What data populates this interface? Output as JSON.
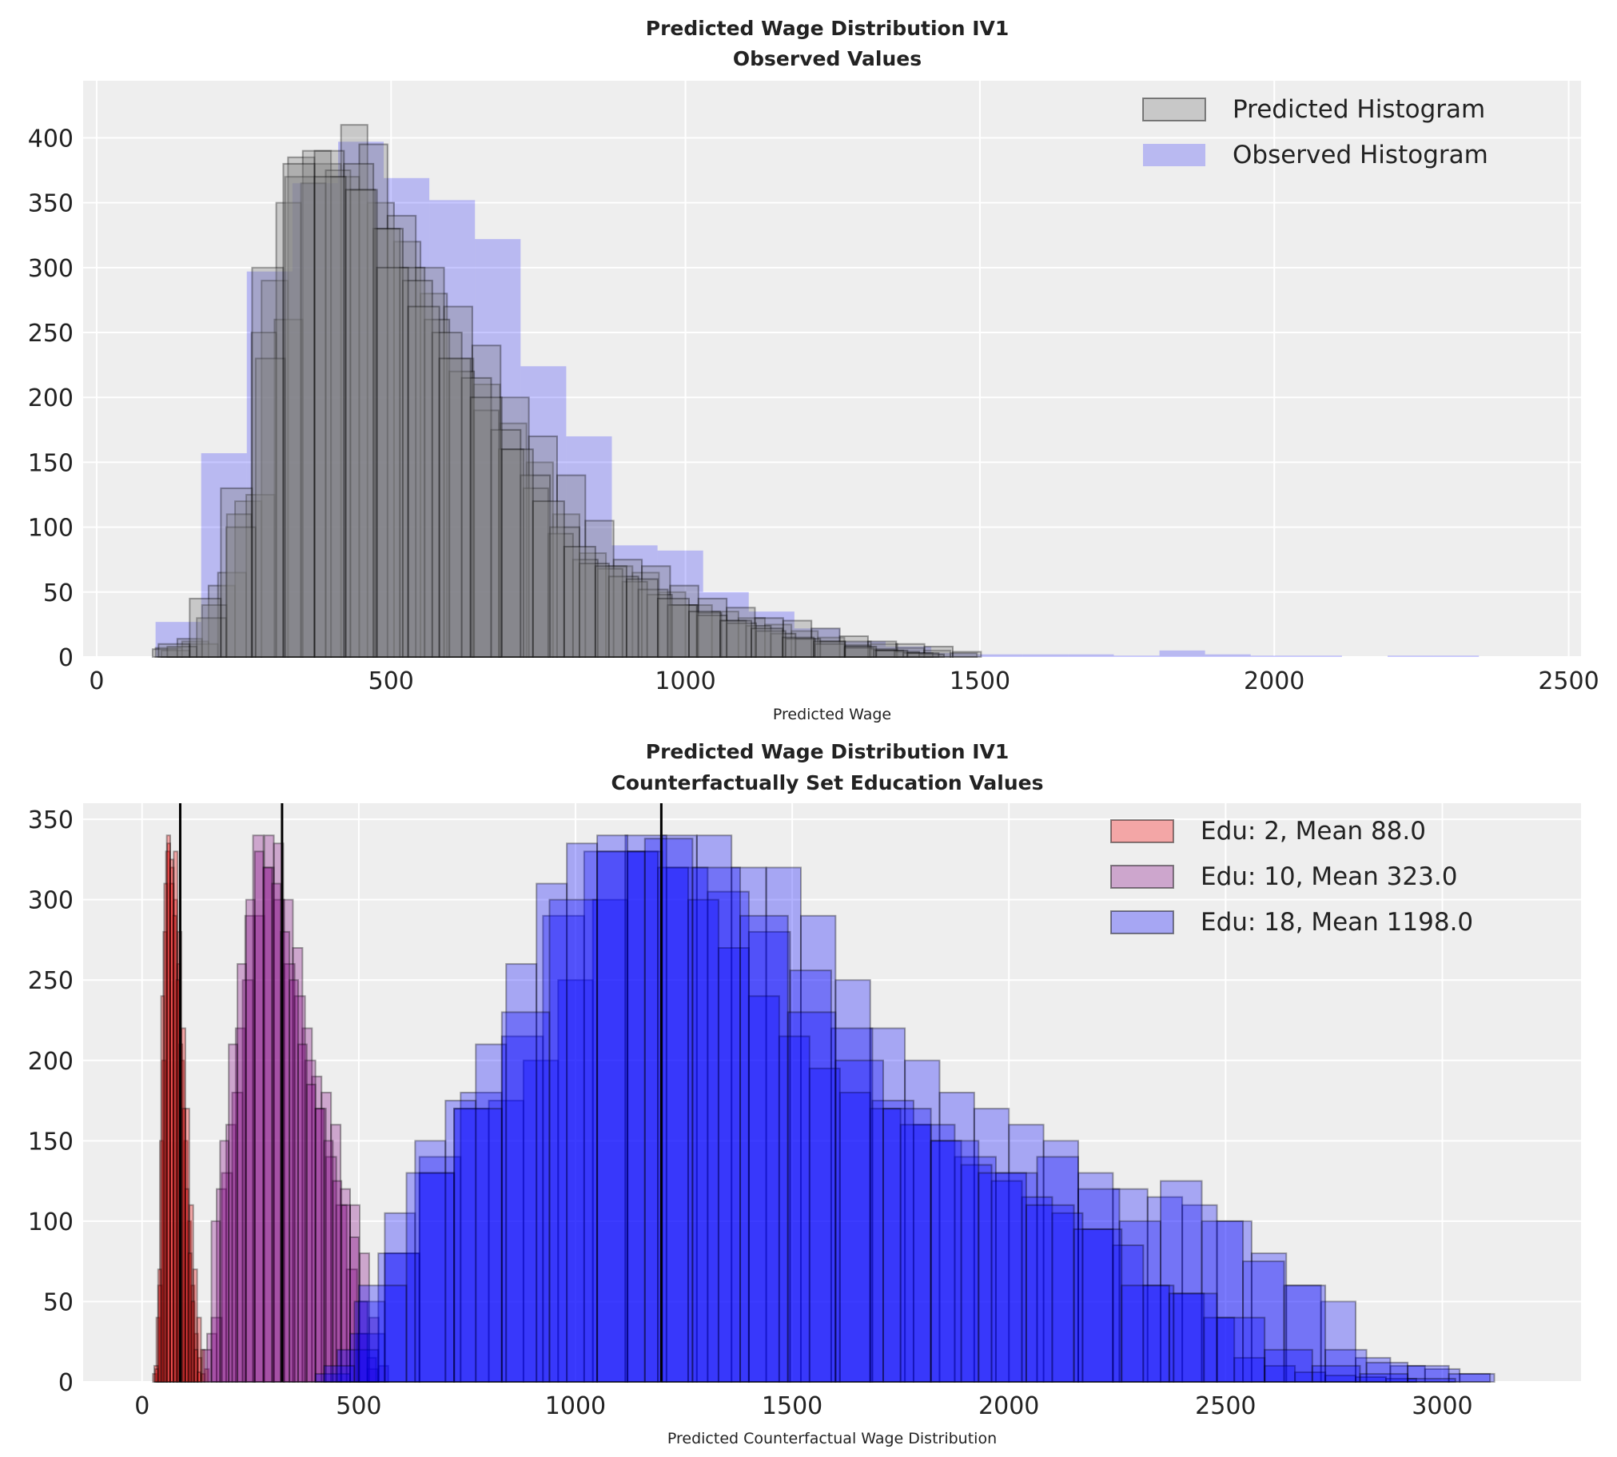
{
  "chart_data": [
    {
      "type": "histogram",
      "title": "Predicted Wage Distribution IV1",
      "subtitle": "Observed Values",
      "xlabel": "Predicted Wage",
      "ylabel": "",
      "xlim": [
        -23,
        2521
      ],
      "ylim": [
        0,
        444
      ],
      "xticks": [
        0,
        500,
        1000,
        1500,
        2000,
        2500
      ],
      "yticks": [
        0,
        50,
        100,
        150,
        200,
        250,
        300,
        350,
        400
      ],
      "grid": true,
      "legend_position": "top-right",
      "legend": [
        {
          "label": "Predicted Histogram",
          "color": "#808080",
          "alpha": 0.35,
          "edge": true
        },
        {
          "label": "Observed Histogram",
          "color": "#0000ff",
          "alpha": 0.22,
          "edge": false
        }
      ],
      "series": [
        {
          "group": "Observed Histogram",
          "color": "#0000ff",
          "alpha": 0.22,
          "edge": false,
          "start": 100,
          "width": 77.5,
          "counts": [
            27,
            157,
            297,
            365,
            397,
            369,
            352,
            322,
            224,
            170,
            86,
            82,
            50,
            35,
            22,
            12,
            8,
            3,
            2,
            2,
            2,
            1,
            5,
            2,
            1,
            1,
            0,
            1,
            1
          ]
        },
        {
          "group": "Predicted Histogram",
          "color": "#808080",
          "alpha": 0.35,
          "edge": true,
          "start": 100,
          "width": 45,
          "counts": [
            7,
            12,
            55,
            120,
            290,
            385,
            380,
            410,
            350,
            320,
            280,
            230,
            210,
            180,
            150,
            110,
            80,
            70,
            65,
            50,
            40,
            35,
            30,
            25,
            20,
            15,
            12,
            10,
            7,
            5,
            3
          ]
        },
        {
          "group": "Predicted Histogram",
          "color": "#808080",
          "alpha": 0.35,
          "edge": true,
          "start": 110,
          "width": 48,
          "counts": [
            5,
            10,
            65,
            125,
            260,
            390,
            370,
            395,
            340,
            300,
            270,
            240,
            200,
            170,
            140,
            105,
            75,
            70,
            55,
            45,
            38,
            30,
            28,
            22,
            16,
            12,
            10,
            8,
            4
          ]
        },
        {
          "group": "Predicted Histogram",
          "color": "#808080",
          "alpha": 0.35,
          "edge": true,
          "start": 95,
          "width": 42,
          "counts": [
            6,
            14,
            40,
            110,
            250,
            350,
            365,
            375,
            360,
            330,
            300,
            260,
            220,
            190,
            160,
            130,
            95,
            75,
            68,
            58,
            48,
            40,
            34,
            28,
            24,
            18,
            14,
            12,
            9,
            6,
            4,
            2
          ]
        },
        {
          "group": "Predicted Histogram",
          "color": "#808080",
          "alpha": 0.35,
          "edge": true,
          "start": 120,
          "width": 50,
          "counts": [
            8,
            30,
            100,
            230,
            370,
            390,
            380,
            330,
            290,
            250,
            215,
            175,
            140,
            100,
            72,
            62,
            52,
            40,
            32,
            26,
            20,
            14,
            10,
            7,
            5,
            3
          ]
        },
        {
          "group": "Predicted Histogram",
          "color": "#808080",
          "alpha": 0.35,
          "edge": true,
          "start": 105,
          "width": 53,
          "counts": [
            10,
            45,
            130,
            300,
            380,
            370,
            360,
            300,
            270,
            230,
            200,
            160,
            120,
            85,
            70,
            60,
            45,
            35,
            28,
            22,
            15,
            12,
            8,
            5,
            3
          ]
        }
      ],
      "vlines": []
    },
    {
      "type": "histogram",
      "title": "Predicted Wage Distribution IV1",
      "subtitle": "Counterfactually Set Education Values",
      "xlabel": "Predicted Counterfactual Wage Distribution",
      "ylabel": "",
      "xlim": [
        -136,
        3320
      ],
      "ylim": [
        0,
        360
      ],
      "xticks": [
        0,
        500,
        1000,
        1500,
        2000,
        2500,
        3000
      ],
      "yticks": [
        0,
        50,
        100,
        150,
        200,
        250,
        300,
        350
      ],
      "grid": true,
      "legend_position": "top-right",
      "legend": [
        {
          "label": "Edu: 2, Mean 88.0",
          "color": "#ff0000",
          "alpha": 0.3,
          "edge": true
        },
        {
          "label": "Edu: 10, Mean 323.0",
          "color": "#800080",
          "alpha": 0.3,
          "edge": true
        },
        {
          "label": "Edu: 18, Mean 1198.0",
          "color": "#0000ff",
          "alpha": 0.3,
          "edge": true
        }
      ],
      "series": [
        {
          "group": "Edu: 2",
          "color": "#ff0000",
          "alpha": 0.3,
          "edge": true,
          "start": 25,
          "width": 8,
          "counts": [
            5,
            40,
            150,
            280,
            340,
            320,
            300,
            260,
            200,
            150,
            100,
            60,
            30,
            15,
            5
          ]
        },
        {
          "group": "Edu: 2",
          "color": "#ff0000",
          "alpha": 0.3,
          "edge": true,
          "start": 28,
          "width": 9,
          "counts": [
            10,
            60,
            200,
            330,
            310,
            330,
            280,
            220,
            170,
            110,
            70,
            40,
            20,
            8
          ]
        },
        {
          "group": "Edu: 2",
          "color": "#ff0000",
          "alpha": 0.3,
          "edge": true,
          "start": 30,
          "width": 7,
          "counts": [
            8,
            70,
            240,
            310,
            335,
            325,
            290,
            250,
            210,
            170,
            120,
            80,
            50,
            20,
            6
          ]
        },
        {
          "group": "Edu: 10",
          "color": "#800080",
          "alpha": 0.3,
          "edge": true,
          "start": 150,
          "width": 22,
          "counts": [
            30,
            120,
            160,
            220,
            290,
            290,
            340,
            335,
            300,
            270,
            220,
            190,
            180,
            160,
            120,
            110,
            80,
            40,
            10
          ]
        },
        {
          "group": "Edu: 10",
          "color": "#800080",
          "alpha": 0.3,
          "edge": true,
          "start": 160,
          "width": 24,
          "counts": [
            40,
            130,
            180,
            250,
            340,
            320,
            300,
            260,
            240,
            200,
            170,
            140,
            110,
            70,
            30,
            8
          ]
        },
        {
          "group": "Edu: 10",
          "color": "#800080",
          "alpha": 0.3,
          "edge": true,
          "start": 140,
          "width": 20,
          "counts": [
            20,
            100,
            150,
            210,
            260,
            300,
            330,
            320,
            310,
            280,
            250,
            210,
            185,
            170,
            150,
            125,
            110,
            90,
            50,
            15
          ]
        },
        {
          "group": "Edu: 18",
          "color": "#0000ff",
          "alpha": 0.3,
          "edge": true,
          "start": 400,
          "width": 80,
          "counts": [
            5,
            30,
            80,
            130,
            170,
            175,
            200,
            250,
            300,
            330,
            340,
            340,
            320,
            320,
            290,
            250,
            220,
            200,
            180,
            170,
            160,
            150,
            130,
            120,
            115,
            110,
            100,
            80,
            60,
            50,
            15,
            10,
            8,
            5
          ]
        },
        {
          "group": "Edu: 18",
          "color": "#0000ff",
          "alpha": 0.3,
          "edge": true,
          "start": 450,
          "width": 95,
          "counts": [
            20,
            80,
            140,
            180,
            215,
            290,
            330,
            340,
            320,
            305,
            280,
            256,
            220,
            175,
            160,
            140,
            130,
            140,
            120,
            100,
            125,
            100,
            75,
            60,
            20,
            12,
            10,
            5
          ]
        },
        {
          "group": "Edu: 18",
          "color": "#0000ff",
          "alpha": 0.3,
          "edge": true,
          "start": 420,
          "width": 70,
          "counts": [
            10,
            50,
            105,
            150,
            175,
            210,
            260,
            310,
            335,
            340,
            330,
            320,
            300,
            270,
            240,
            215,
            195,
            180,
            170,
            160,
            150,
            135,
            125,
            115,
            105,
            95,
            85,
            60,
            55,
            40,
            15,
            10,
            6,
            4,
            3,
            2
          ]
        },
        {
          "group": "Edu: 18",
          "color": "#0000ff",
          "alpha": 0.3,
          "edge": true,
          "start": 500,
          "width": 110,
          "counts": [
            60,
            130,
            170,
            230,
            300,
            330,
            338,
            320,
            290,
            230,
            200,
            170,
            150,
            130,
            110,
            95,
            60,
            55,
            40,
            20,
            10,
            5,
            2
          ]
        }
      ],
      "vlines": [
        88,
        323,
        1198
      ]
    }
  ]
}
